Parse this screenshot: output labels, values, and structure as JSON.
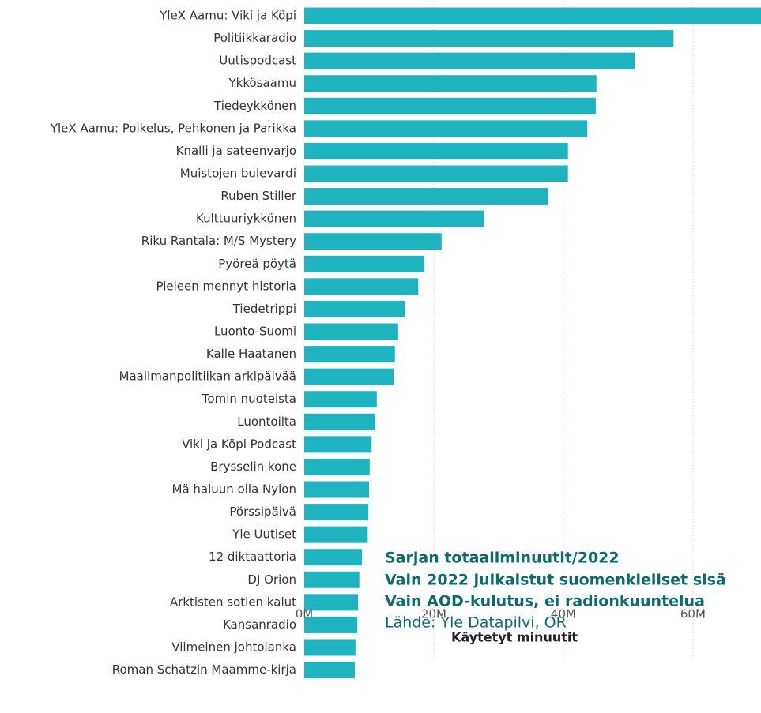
{
  "chart_data": {
    "type": "barh",
    "categories": [
      "YleX Aamu: Viki ja Köpi",
      "Politiikkaradio",
      "Uutispodcast",
      "Ykkösaamu",
      "Tiedeykkönen",
      "YleX Aamu: Poikelus, Pehkonen ja Parikka",
      "Knalli ja sateenvarjo",
      "Muistojen bulevardi",
      "Ruben Stiller",
      "Kulttuuriykkönen",
      "Riku Rantala: M/S Mystery",
      "Pyöreä pöytä",
      "Pieleen mennyt historia",
      "Tiedetrippi",
      "Luonto-Suomi",
      "Kalle Haatanen",
      "Maailmanpolitiikan arkipäivää",
      "Tomin nuoteista",
      "Luontoilta",
      "Viki ja Köpi Podcast",
      "Brysselin kone",
      "Mä haluun olla Nylon",
      "Pörssipäivä",
      "Yle Uutiset",
      "12 diktaattoria",
      "DJ Orion",
      "Arktisten sotien kaiut",
      "Kansanradio",
      "Viimeinen johtolanka",
      "Roman Schatzin Maamme-kirja"
    ],
    "values": [
      72000000,
      57000000,
      51000000,
      45100000,
      45000000,
      43700000,
      40700000,
      40700000,
      37700000,
      27700000,
      21200000,
      18500000,
      17600000,
      15500000,
      14500000,
      14000000,
      13800000,
      11200000,
      10900000,
      10400000,
      10100000,
      10000000,
      9900000,
      9800000,
      8900000,
      8500000,
      8300000,
      8200000,
      7900000,
      7800000
    ],
    "color": "#1fb3bf",
    "xlim": [
      0,
      70500000
    ],
    "xticks": [
      {
        "value": 0,
        "label": "0M"
      },
      {
        "value": 20000000,
        "label": "20M"
      },
      {
        "value": 40000000,
        "label": "40M"
      },
      {
        "value": 60000000,
        "label": "60M"
      }
    ],
    "grid": true,
    "x_label": "Käytetyt minuutit",
    "annotations": [
      "Sarjan totaaliminuutit/2022",
      "Vain 2022 julkaistut suomenkieliset sisä",
      "Vain AOD-kulutus, ei radionkuuntelua",
      "Lähde: Yle Datapilvi, OR"
    ]
  }
}
